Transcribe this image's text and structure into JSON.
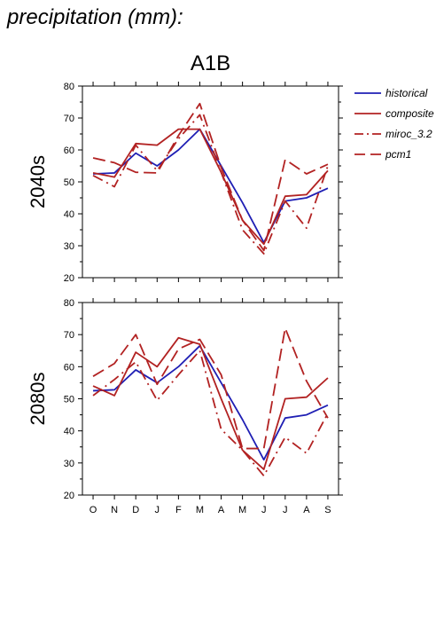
{
  "page": {
    "title": "precipitation (mm):"
  },
  "colors": {
    "historical": "#1f1fb4",
    "composite": "#b22222",
    "miroc_3.2": "#b22222",
    "pcm1": "#b22222"
  },
  "chart_data": [
    {
      "type": "line",
      "title": "A1B",
      "ylabel": "2040s",
      "ylim": [
        20,
        80
      ],
      "yticks": [
        20,
        30,
        40,
        50,
        60,
        70,
        80
      ],
      "categories": [
        "O",
        "N",
        "D",
        "J",
        "F",
        "M",
        "A",
        "M",
        "J",
        "J",
        "A",
        "S"
      ],
      "legend_position": "right",
      "grid": false,
      "series": [
        {
          "name": "historical",
          "style": "solid",
          "color_key": "historical",
          "values": [
            52.5,
            52.8,
            59,
            55,
            60,
            66.5,
            55,
            43.5,
            31,
            44,
            45,
            48
          ]
        },
        {
          "name": "composite",
          "style": "solid",
          "color_key": "composite",
          "values": [
            52.8,
            51.5,
            62,
            61.5,
            66.5,
            66.5,
            53,
            38,
            30.5,
            45.5,
            46,
            53.5
          ]
        },
        {
          "name": "miroc_3.2",
          "style": "dashdot",
          "color_key": "miroc_3.2",
          "values": [
            52,
            48.5,
            61.5,
            53.5,
            63.5,
            71,
            53,
            35,
            27.5,
            44,
            35.5,
            55
          ]
        },
        {
          "name": "pcm1",
          "style": "dashed",
          "color_key": "pcm1",
          "values": [
            57.5,
            56,
            53,
            52.8,
            64.5,
            74.5,
            54.5,
            38,
            28.5,
            57,
            52.5,
            55.5
          ]
        }
      ]
    },
    {
      "type": "line",
      "title": "",
      "ylabel": "2080s",
      "ylim": [
        20,
        80
      ],
      "yticks": [
        20,
        30,
        40,
        50,
        60,
        70,
        80
      ],
      "categories": [
        "O",
        "N",
        "D",
        "J",
        "F",
        "M",
        "A",
        "M",
        "J",
        "J",
        "A",
        "S"
      ],
      "grid": false,
      "series": [
        {
          "name": "historical",
          "style": "solid",
          "color_key": "historical",
          "values": [
            52.5,
            52.8,
            59,
            55,
            60,
            66.5,
            55,
            43.5,
            31,
            44,
            45,
            48
          ]
        },
        {
          "name": "composite",
          "style": "solid",
          "color_key": "composite",
          "values": [
            54,
            51,
            64.5,
            60,
            69,
            67,
            50,
            34,
            28,
            50,
            50.5,
            56.5
          ]
        },
        {
          "name": "miroc_3.2",
          "style": "dashdot",
          "color_key": "miroc_3.2",
          "values": [
            51,
            56,
            61.5,
            49.5,
            57.5,
            65,
            40.5,
            34,
            26,
            38,
            33,
            45.5
          ]
        },
        {
          "name": "pcm1",
          "style": "dashed",
          "color_key": "pcm1",
          "values": [
            57,
            61,
            70,
            54.5,
            65.5,
            68.5,
            57.5,
            34.5,
            34.5,
            72,
            55.5,
            44
          ]
        }
      ]
    }
  ]
}
